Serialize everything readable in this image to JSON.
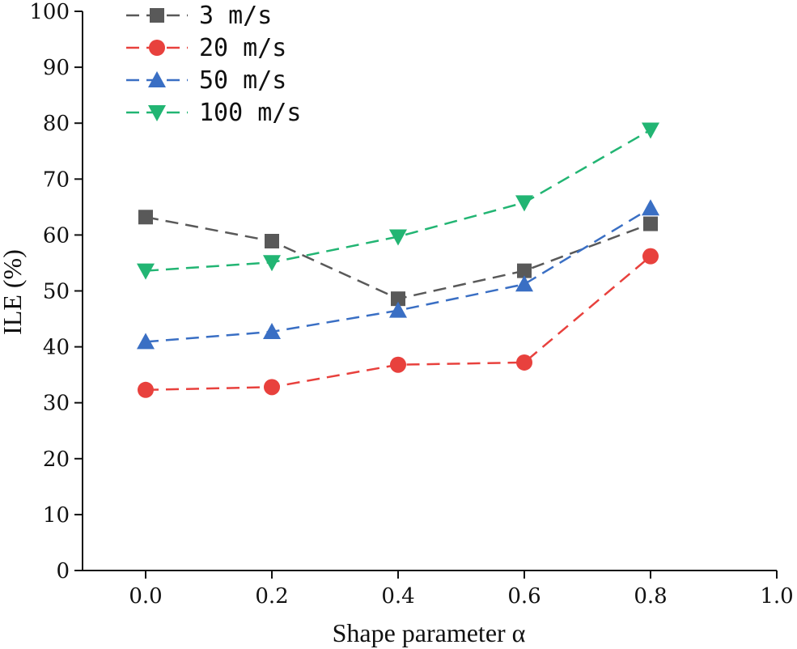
{
  "chart_data": {
    "type": "line",
    "title": "",
    "xlabel": "Shape parameter  α",
    "ylabel": "ILE (%)",
    "xlim": [
      -0.1,
      1.0
    ],
    "ylim": [
      0,
      100
    ],
    "x_ticks": [
      0.0,
      0.2,
      0.4,
      0.6,
      0.8,
      1.0
    ],
    "x_tick_labels": [
      "0.0",
      "0.2",
      "0.4",
      "0.6",
      "0.8",
      "1.0"
    ],
    "y_ticks": [
      0,
      10,
      20,
      30,
      40,
      50,
      60,
      70,
      80,
      90,
      100
    ],
    "y_tick_labels": [
      "0",
      "10",
      "20",
      "30",
      "40",
      "50",
      "60",
      "70",
      "80",
      "90",
      "100"
    ],
    "grid": false,
    "legend_position": "top-left",
    "x": [
      0.0,
      0.2,
      0.4,
      0.6,
      0.8
    ],
    "series": [
      {
        "name": "3 m/s",
        "values": [
          63.2,
          58.9,
          48.6,
          53.6,
          62.0
        ],
        "color": "#595959",
        "marker": "square"
      },
      {
        "name": "20 m/s",
        "values": [
          32.3,
          32.8,
          36.8,
          37.2,
          56.2
        ],
        "color": "#e8413d",
        "marker": "circle"
      },
      {
        "name": "50 m/s",
        "values": [
          40.9,
          42.7,
          46.5,
          51.2,
          64.8
        ],
        "color": "#3a6fc4",
        "marker": "triangle-up"
      },
      {
        "name": "100 m/s",
        "values": [
          53.6,
          55.1,
          59.7,
          65.8,
          78.8
        ],
        "color": "#22b573",
        "marker": "triangle-down"
      }
    ]
  }
}
